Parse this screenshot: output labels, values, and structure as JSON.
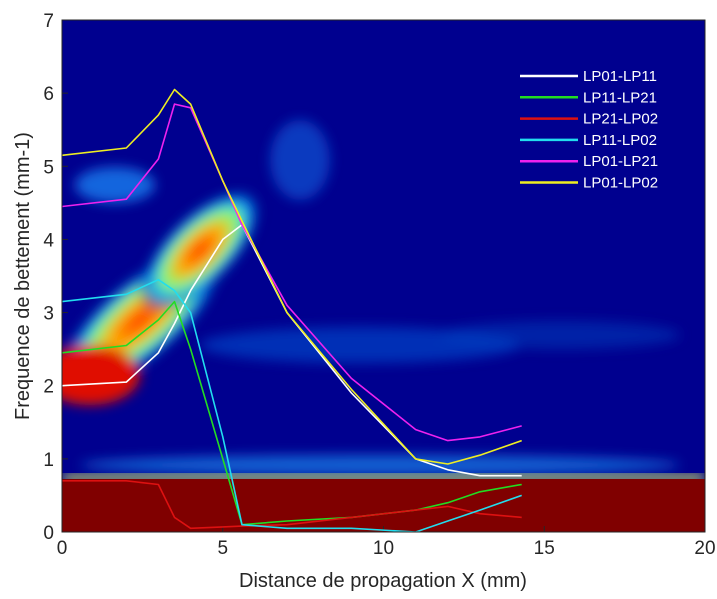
{
  "chart_data": {
    "type": "line",
    "xlabel": "Distance de propagation X (mm)",
    "ylabel": "Frequence de bettement (mm-1)",
    "xlim": [
      0,
      20
    ],
    "ylim": [
      0,
      7
    ],
    "xticks": [
      0,
      5,
      10,
      15,
      20
    ],
    "yticks": [
      0,
      1,
      2,
      3,
      4,
      5,
      6,
      7
    ],
    "legend": "upper right",
    "x": [
      0,
      2,
      3,
      3.5,
      4,
      5,
      5.6,
      7,
      9,
      11,
      12,
      13,
      14.3
    ],
    "series": [
      {
        "name": "LP01-LP11",
        "color": "#ffffff",
        "values": [
          2.0,
          2.05,
          2.45,
          2.85,
          3.3,
          4.0,
          4.2,
          3.0,
          1.9,
          1.0,
          0.85,
          0.77,
          0.77
        ]
      },
      {
        "name": "LP11-LP21",
        "color": "#22dd22",
        "values": [
          2.45,
          2.55,
          2.9,
          3.15,
          2.5,
          1.0,
          0.1,
          0.15,
          0.2,
          0.3,
          0.4,
          0.55,
          0.65
        ]
      },
      {
        "name": "LP21-LP02",
        "color": "#dd1111",
        "values": [
          0.7,
          0.7,
          0.65,
          0.2,
          0.05,
          0.07,
          0.08,
          0.1,
          0.2,
          0.3,
          0.35,
          0.25,
          0.2
        ]
      },
      {
        "name": "LP11-LP02",
        "color": "#22ddee",
        "values": [
          3.15,
          3.25,
          3.45,
          3.3,
          3.0,
          1.3,
          0.1,
          0.05,
          0.05,
          0.0,
          0.15,
          0.3,
          0.5
        ]
      },
      {
        "name": "LP01-LP21",
        "color": "#ee22ee",
        "values": [
          4.45,
          4.55,
          5.1,
          5.85,
          5.8,
          4.8,
          4.2,
          3.1,
          2.1,
          1.4,
          1.25,
          1.3,
          1.45
        ]
      },
      {
        "name": "LP01-LP02",
        "color": "#eeee22",
        "values": [
          5.15,
          5.25,
          5.7,
          6.05,
          5.85,
          4.8,
          4.25,
          3.0,
          1.95,
          1.0,
          0.93,
          1.05,
          1.25
        ]
      }
    ]
  }
}
